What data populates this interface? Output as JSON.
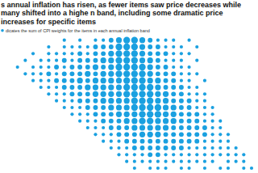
{
  "chart_data": {
    "type": "dot_matrix",
    "title": "s annual inflation has risen, as fewer items saw price decreases while many shifted into a highe n band, including some dramatic price increases for specific items",
    "subtitle": "dicates the sum of CPI weights for the items in each annual inflation band",
    "color": "#1aa0e0",
    "cells": [
      [
        0,
        0,
        0,
        0,
        0,
        0,
        0,
        1,
        0,
        1,
        0,
        1,
        1,
        2,
        3,
        4,
        4,
        3,
        2,
        1,
        1,
        1,
        0,
        1,
        0,
        0,
        0,
        0,
        0,
        0,
        0,
        0
      ],
      [
        0,
        0,
        0,
        0,
        0,
        1,
        0,
        1,
        1,
        1,
        1,
        2,
        2,
        2,
        4,
        4,
        4,
        3,
        2,
        2,
        1,
        1,
        1,
        0,
        1,
        0,
        0,
        0,
        0,
        0,
        0,
        0
      ],
      [
        0,
        0,
        0,
        1,
        0,
        1,
        1,
        1,
        1,
        2,
        1,
        2,
        2,
        3,
        4,
        4,
        4,
        3,
        2,
        2,
        2,
        1,
        1,
        1,
        0,
        0,
        0,
        0,
        0,
        0,
        0,
        0
      ],
      [
        0,
        0,
        1,
        0,
        1,
        1,
        1,
        2,
        1,
        2,
        2,
        2,
        3,
        3,
        4,
        4,
        4,
        3,
        3,
        2,
        1,
        1,
        1,
        0,
        1,
        0,
        0,
        0,
        0,
        0,
        0,
        0
      ],
      [
        0,
        1,
        0,
        1,
        1,
        1,
        2,
        1,
        2,
        2,
        2,
        3,
        2,
        3,
        4,
        4,
        4,
        4,
        3,
        2,
        2,
        1,
        1,
        1,
        0,
        0,
        0,
        0,
        0,
        0,
        0,
        0
      ],
      [
        0,
        0,
        1,
        1,
        1,
        2,
        1,
        2,
        2,
        2,
        3,
        2,
        3,
        3,
        4,
        4,
        4,
        4,
        3,
        2,
        2,
        2,
        1,
        1,
        1,
        0,
        0,
        0,
        0,
        0,
        0,
        0
      ],
      [
        0,
        0,
        0,
        1,
        1,
        1,
        2,
        2,
        2,
        3,
        2,
        3,
        3,
        3,
        3,
        4,
        4,
        4,
        3,
        3,
        2,
        2,
        1,
        1,
        0,
        1,
        0,
        0,
        0,
        0,
        0,
        0
      ],
      [
        0,
        0,
        0,
        0,
        1,
        1,
        1,
        2,
        2,
        2,
        3,
        3,
        3,
        3,
        3,
        4,
        4,
        4,
        4,
        3,
        2,
        2,
        2,
        1,
        1,
        0,
        0,
        0,
        0,
        0,
        0,
        0
      ],
      [
        0,
        0,
        0,
        0,
        0,
        1,
        1,
        1,
        2,
        2,
        2,
        3,
        3,
        3,
        3,
        4,
        4,
        4,
        4,
        3,
        3,
        2,
        2,
        1,
        1,
        1,
        0,
        0,
        0,
        0,
        0,
        0
      ],
      [
        0,
        0,
        0,
        0,
        0,
        0,
        1,
        1,
        1,
        2,
        2,
        2,
        3,
        3,
        3,
        3,
        4,
        4,
        4,
        3,
        3,
        2,
        2,
        2,
        1,
        1,
        0,
        0,
        0,
        0,
        0,
        0
      ],
      [
        0,
        0,
        0,
        0,
        0,
        0,
        0,
        1,
        1,
        1,
        2,
        2,
        2,
        3,
        3,
        3,
        4,
        4,
        4,
        4,
        3,
        3,
        2,
        2,
        1,
        1,
        1,
        0,
        0,
        0,
        0,
        0
      ],
      [
        0,
        0,
        0,
        0,
        0,
        0,
        0,
        0,
        1,
        1,
        1,
        2,
        2,
        2,
        3,
        3,
        3,
        4,
        4,
        4,
        3,
        3,
        2,
        2,
        2,
        1,
        1,
        0,
        0,
        0,
        0,
        0
      ],
      [
        0,
        0,
        0,
        0,
        0,
        0,
        0,
        0,
        0,
        1,
        1,
        1,
        2,
        2,
        2,
        3,
        3,
        4,
        4,
        3,
        3,
        3,
        2,
        2,
        2,
        1,
        1,
        1,
        0,
        0,
        0,
        0
      ],
      [
        0,
        0,
        0,
        0,
        0,
        0,
        0,
        0,
        0,
        0,
        1,
        1,
        1,
        2,
        2,
        2,
        3,
        3,
        3,
        3,
        3,
        2,
        2,
        2,
        2,
        2,
        1,
        1,
        0,
        0,
        0,
        0
      ],
      [
        0,
        0,
        0,
        0,
        0,
        0,
        0,
        0,
        0,
        0,
        0,
        1,
        1,
        1,
        2,
        2,
        2,
        3,
        3,
        3,
        2,
        2,
        2,
        2,
        2,
        2,
        1,
        1,
        1,
        0,
        0,
        0
      ],
      [
        0,
        0,
        0,
        0,
        0,
        0,
        0,
        0,
        0,
        0,
        0,
        0,
        1,
        1,
        1,
        2,
        2,
        2,
        2,
        2,
        2,
        2,
        2,
        2,
        2,
        1,
        1,
        1,
        1,
        0,
        0,
        0
      ],
      [
        0,
        0,
        0,
        0,
        0,
        0,
        0,
        0,
        0,
        0,
        0,
        0,
        0,
        1,
        1,
        1,
        2,
        2,
        2,
        2,
        2,
        2,
        2,
        1,
        1,
        1,
        1,
        1,
        1,
        1,
        0,
        0
      ],
      [
        0,
        0,
        0,
        0,
        0,
        0,
        0,
        0,
        0,
        0,
        0,
        0,
        0,
        0,
        1,
        1,
        1,
        1,
        2,
        2,
        1,
        1,
        1,
        1,
        1,
        1,
        1,
        1,
        1,
        1,
        1,
        0
      ],
      [
        0,
        0,
        0,
        0,
        0,
        0,
        0,
        0,
        0,
        0,
        0,
        0,
        0,
        0,
        0,
        1,
        1,
        1,
        1,
        1,
        1,
        1,
        1,
        1,
        1,
        1,
        1,
        0,
        1,
        1,
        1,
        0
      ],
      [
        0,
        0,
        0,
        0,
        0,
        0,
        0,
        0,
        0,
        0,
        0,
        0,
        0,
        0,
        0,
        0,
        1,
        0,
        1,
        1,
        1,
        0,
        1,
        1,
        0,
        1,
        0,
        1,
        1,
        0,
        1,
        1
      ]
    ]
  }
}
